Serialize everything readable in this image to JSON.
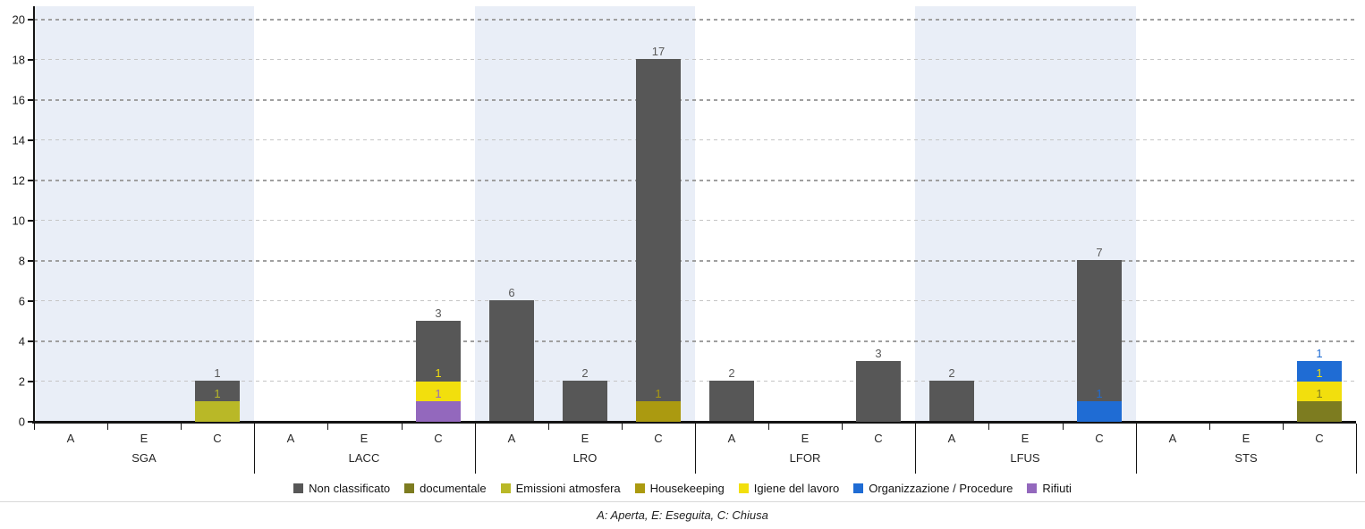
{
  "chart_data": {
    "type": "bar",
    "stacked": true,
    "title": "",
    "xlabel": "",
    "ylabel": "",
    "ylim": [
      0,
      20
    ],
    "y_ticks": [
      0,
      2,
      4,
      6,
      8,
      10,
      12,
      14,
      16,
      18,
      20
    ],
    "grid": "dashed-horizontal",
    "legend_position": "bottom",
    "x_structure": {
      "groups": [
        "SGA",
        "LACC",
        "LRO",
        "LFOR",
        "LFUS",
        "STS"
      ],
      "slots": [
        "A",
        "E",
        "C"
      ]
    },
    "series": [
      {
        "name": "Non classificato",
        "color": "#575757",
        "label_color": "#595959"
      },
      {
        "name": "documentale",
        "color": "#7d7c20"
      },
      {
        "name": "Emissioni atmosfera",
        "color": "#b9b827"
      },
      {
        "name": "Housekeeping",
        "color": "#ab9a10"
      },
      {
        "name": "Igiene del lavoro",
        "color": "#f2df0d"
      },
      {
        "name": "Organizzazione / Procedure",
        "color": "#1f6cd4"
      },
      {
        "name": "Rifiuti",
        "color": "#9368bd"
      }
    ],
    "bars": [
      {
        "group": "SGA",
        "slot": "C",
        "segments": [
          {
            "series": "Emissioni atmosfera",
            "value": 1
          },
          {
            "series": "Non classificato",
            "value": 1
          }
        ]
      },
      {
        "group": "LACC",
        "slot": "C",
        "segments": [
          {
            "series": "Rifiuti",
            "value": 1
          },
          {
            "series": "Igiene del lavoro",
            "value": 1
          },
          {
            "series": "Non classificato",
            "value": 3
          }
        ]
      },
      {
        "group": "LRO",
        "slot": "A",
        "segments": [
          {
            "series": "Non classificato",
            "value": 6
          }
        ]
      },
      {
        "group": "LRO",
        "slot": "E",
        "segments": [
          {
            "series": "Non classificato",
            "value": 2
          }
        ]
      },
      {
        "group": "LRO",
        "slot": "C",
        "segments": [
          {
            "series": "Housekeeping",
            "value": 1
          },
          {
            "series": "Non classificato",
            "value": 17
          }
        ]
      },
      {
        "group": "LFOR",
        "slot": "A",
        "segments": [
          {
            "series": "Non classificato",
            "value": 2
          }
        ]
      },
      {
        "group": "LFOR",
        "slot": "C",
        "segments": [
          {
            "series": "Non classificato",
            "value": 3
          }
        ]
      },
      {
        "group": "LFUS",
        "slot": "A",
        "segments": [
          {
            "series": "Non classificato",
            "value": 2
          }
        ]
      },
      {
        "group": "LFUS",
        "slot": "C",
        "segments": [
          {
            "series": "Organizzazione / Procedure",
            "value": 1
          },
          {
            "series": "Non classificato",
            "value": 7
          }
        ]
      },
      {
        "group": "STS",
        "slot": "C",
        "segments": [
          {
            "series": "documentale",
            "value": 1
          },
          {
            "series": "Igiene del lavoro",
            "value": 1
          },
          {
            "series": "Organizzazione / Procedure",
            "value": 1
          }
        ]
      }
    ]
  },
  "footnote": {
    "text": "A: Aperta, E: Eseguita, C: Chiusa"
  }
}
